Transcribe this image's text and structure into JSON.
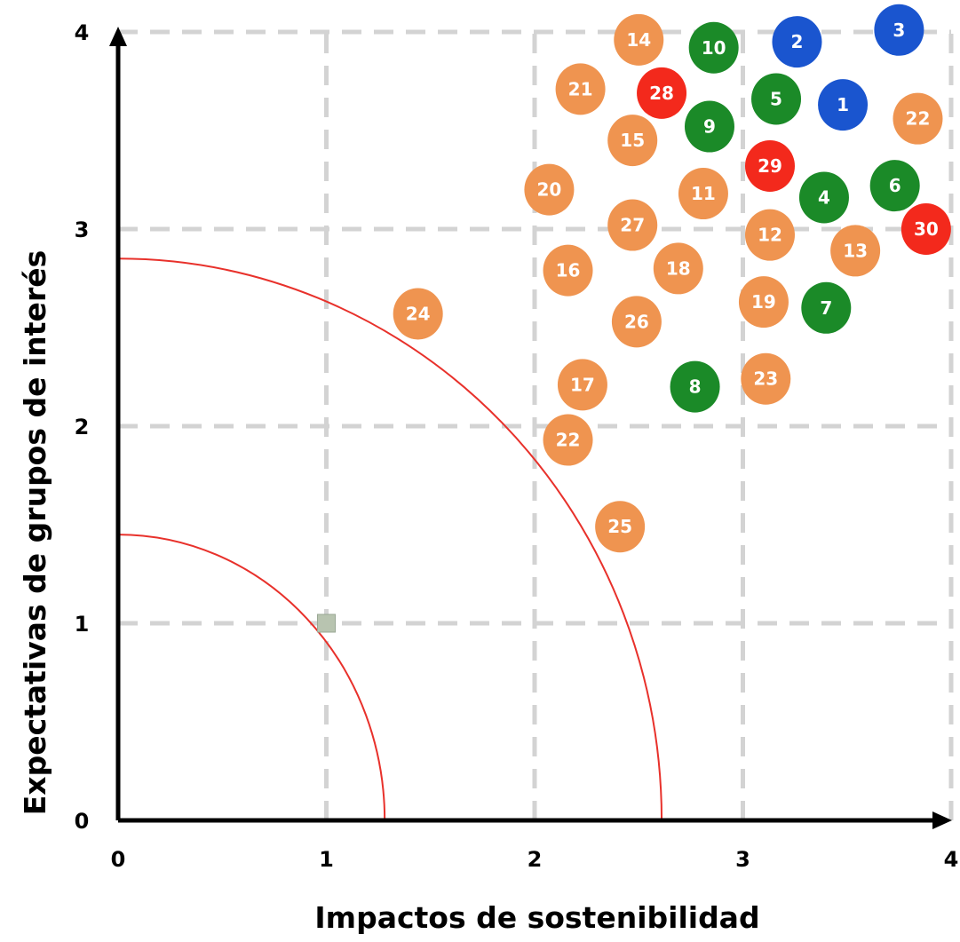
{
  "chart_data": {
    "type": "scatter",
    "title": "",
    "xlabel": "Impactos de sostenibilidad",
    "ylabel": "Expectativas de grupos de interés",
    "xlim": [
      0,
      4
    ],
    "ylim": [
      0,
      4
    ],
    "x_ticks": [
      "0",
      "1",
      "2",
      "3",
      "4"
    ],
    "y_ticks": [
      "0",
      "1",
      "2",
      "3",
      "4"
    ],
    "grid": true,
    "colors": {
      "orange": "#ef9450",
      "green": "#1b8a28",
      "blue": "#1a55cf",
      "red": "#f3291c",
      "grid": "#d3d3d3",
      "arc": "#e8312b"
    },
    "arcs": [
      {
        "radius_x": 1.28,
        "radius_y": 1.45
      },
      {
        "radius_x": 2.61,
        "radius_y": 2.85
      }
    ],
    "marker": {
      "x": 1.0,
      "y": 1.0,
      "color": "#b8c4b0"
    },
    "points": [
      {
        "label": "1",
        "x": 3.48,
        "y": 3.63,
        "color": "blue"
      },
      {
        "label": "2",
        "x": 3.26,
        "y": 3.95,
        "color": "blue"
      },
      {
        "label": "3",
        "x": 3.75,
        "y": 4.01,
        "color": "blue"
      },
      {
        "label": "4",
        "x": 3.39,
        "y": 3.16,
        "color": "green"
      },
      {
        "label": "5",
        "x": 3.16,
        "y": 3.66,
        "color": "green"
      },
      {
        "label": "6",
        "x": 3.73,
        "y": 3.22,
        "color": "green"
      },
      {
        "label": "7",
        "x": 3.4,
        "y": 2.6,
        "color": "green"
      },
      {
        "label": "8",
        "x": 2.77,
        "y": 2.2,
        "color": "green"
      },
      {
        "label": "9",
        "x": 2.84,
        "y": 3.52,
        "color": "green"
      },
      {
        "label": "10",
        "x": 2.86,
        "y": 3.92,
        "color": "green"
      },
      {
        "label": "11",
        "x": 2.81,
        "y": 3.18,
        "color": "orange"
      },
      {
        "label": "12",
        "x": 3.13,
        "y": 2.97,
        "color": "orange"
      },
      {
        "label": "13",
        "x": 3.54,
        "y": 2.89,
        "color": "orange"
      },
      {
        "label": "14",
        "x": 2.5,
        "y": 3.96,
        "color": "orange"
      },
      {
        "label": "15",
        "x": 2.47,
        "y": 3.45,
        "color": "orange"
      },
      {
        "label": "16",
        "x": 2.16,
        "y": 2.79,
        "color": "orange"
      },
      {
        "label": "17",
        "x": 2.23,
        "y": 2.21,
        "color": "orange"
      },
      {
        "label": "18",
        "x": 2.69,
        "y": 2.8,
        "color": "orange"
      },
      {
        "label": "19",
        "x": 3.1,
        "y": 2.63,
        "color": "orange"
      },
      {
        "label": "20",
        "x": 2.07,
        "y": 3.2,
        "color": "orange"
      },
      {
        "label": "21",
        "x": 2.22,
        "y": 3.71,
        "color": "orange"
      },
      {
        "label": "22",
        "x": 3.84,
        "y": 3.56,
        "color": "orange"
      },
      {
        "label": "22",
        "x": 2.16,
        "y": 1.93,
        "color": "orange"
      },
      {
        "label": "23",
        "x": 3.11,
        "y": 2.24,
        "color": "orange"
      },
      {
        "label": "24",
        "x": 1.44,
        "y": 2.57,
        "color": "orange"
      },
      {
        "label": "25",
        "x": 2.41,
        "y": 1.49,
        "color": "orange"
      },
      {
        "label": "26",
        "x": 2.49,
        "y": 2.53,
        "color": "orange"
      },
      {
        "label": "27",
        "x": 2.47,
        "y": 3.02,
        "color": "orange"
      },
      {
        "label": "28",
        "x": 2.61,
        "y": 3.69,
        "color": "red"
      },
      {
        "label": "29",
        "x": 3.13,
        "y": 3.32,
        "color": "red"
      },
      {
        "label": "30",
        "x": 3.88,
        "y": 3.0,
        "color": "red"
      }
    ]
  }
}
